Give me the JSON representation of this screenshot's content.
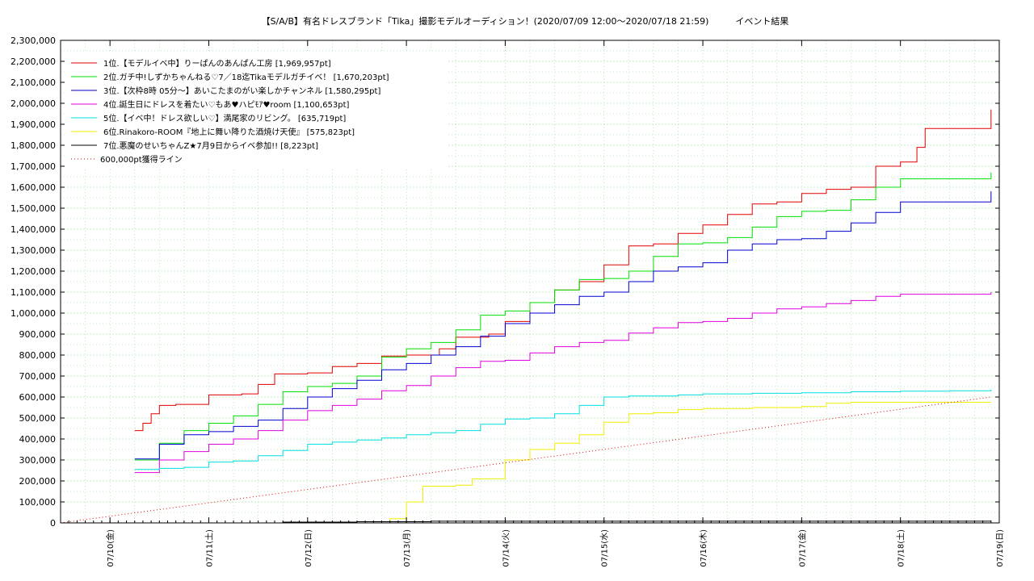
{
  "chart_data": {
    "type": "line",
    "title": "【S/A/B】有名ドレスブランド「Tika」撮影モデルオーディション！(2020/07/09 12:00〜2020/07/18 21:59)　　　イベント結果",
    "xlabel": "",
    "ylabel": "",
    "ylim": [
      0,
      2300000
    ],
    "xlim": [
      "2020-07-09 12:00",
      "2020-07-19 00:00"
    ],
    "grid": true,
    "legend_position": "top-left",
    "y_ticks": [
      "0",
      "100,000",
      "200,000",
      "300,000",
      "400,000",
      "500,000",
      "600,000",
      "700,000",
      "800,000",
      "900,000",
      "1,000,000",
      "1,100,000",
      "1,200,000",
      "1,300,000",
      "1,400,000",
      "1,500,000",
      "1,600,000",
      "1,700,000",
      "1,800,000",
      "1,900,000",
      "2,000,000",
      "2,100,000",
      "2,200,000",
      "2,300,000"
    ],
    "x_ticks": [
      "07/10(金)",
      "07/11(土)",
      "07/12(日)",
      "07/13(月)",
      "07/14(火)",
      "07/15(水)",
      "07/16(木)",
      "07/17(金)",
      "07/18(土)",
      "07/19(日)"
    ],
    "x_tick_dates": [
      "2020-07-10",
      "2020-07-11",
      "2020-07-12",
      "2020-07-13",
      "2020-07-14",
      "2020-07-15",
      "2020-07-16",
      "2020-07-17",
      "2020-07-18",
      "2020-07-19"
    ],
    "series": [
      {
        "name": "1位.【モデルイベ中】りーぱんのあんぱん工房 [1,969,957pt]",
        "color": "#e00000",
        "style": "solid",
        "points": [
          [
            "2020-07-10 06:00",
            440000
          ],
          [
            "2020-07-10 08:00",
            475000
          ],
          [
            "2020-07-10 10:00",
            520000
          ],
          [
            "2020-07-10 12:00",
            560000
          ],
          [
            "2020-07-10 16:00",
            565000
          ],
          [
            "2020-07-11 00:00",
            610000
          ],
          [
            "2020-07-11 08:00",
            615000
          ],
          [
            "2020-07-11 12:00",
            660000
          ],
          [
            "2020-07-11 16:00",
            710000
          ],
          [
            "2020-07-12 00:00",
            715000
          ],
          [
            "2020-07-12 06:00",
            745000
          ],
          [
            "2020-07-12 12:00",
            760000
          ],
          [
            "2020-07-12 18:00",
            795000
          ],
          [
            "2020-07-13 00:00",
            800000
          ],
          [
            "2020-07-13 08:00",
            830000
          ],
          [
            "2020-07-13 12:00",
            885000
          ],
          [
            "2020-07-13 20:00",
            900000
          ],
          [
            "2020-07-14 00:00",
            960000
          ],
          [
            "2020-07-14 06:00",
            1050000
          ],
          [
            "2020-07-14 12:00",
            1110000
          ],
          [
            "2020-07-14 18:00",
            1150000
          ],
          [
            "2020-07-15 00:00",
            1230000
          ],
          [
            "2020-07-15 06:00",
            1320000
          ],
          [
            "2020-07-15 12:00",
            1330000
          ],
          [
            "2020-07-15 18:00",
            1380000
          ],
          [
            "2020-07-16 00:00",
            1420000
          ],
          [
            "2020-07-16 06:00",
            1470000
          ],
          [
            "2020-07-16 12:00",
            1520000
          ],
          [
            "2020-07-16 18:00",
            1530000
          ],
          [
            "2020-07-17 00:00",
            1570000
          ],
          [
            "2020-07-17 06:00",
            1590000
          ],
          [
            "2020-07-17 12:00",
            1600000
          ],
          [
            "2020-07-17 18:00",
            1700000
          ],
          [
            "2020-07-18 00:00",
            1720000
          ],
          [
            "2020-07-18 04:00",
            1790000
          ],
          [
            "2020-07-18 06:00",
            1880000
          ],
          [
            "2020-07-18 12:00",
            1880000
          ],
          [
            "2020-07-18 22:00",
            1969957
          ]
        ]
      },
      {
        "name": "2位.ガチ中!しずかちゃんねる♡7／18迄Tikaモデルガチイベ！ [1,670,203pt]",
        "color": "#00e000",
        "style": "solid",
        "points": [
          [
            "2020-07-10 06:00",
            300000
          ],
          [
            "2020-07-10 12:00",
            380000
          ],
          [
            "2020-07-10 18:00",
            440000
          ],
          [
            "2020-07-11 00:00",
            475000
          ],
          [
            "2020-07-11 06:00",
            510000
          ],
          [
            "2020-07-11 12:00",
            565000
          ],
          [
            "2020-07-11 18:00",
            625000
          ],
          [
            "2020-07-12 00:00",
            650000
          ],
          [
            "2020-07-12 06:00",
            665000
          ],
          [
            "2020-07-12 12:00",
            700000
          ],
          [
            "2020-07-12 18:00",
            790000
          ],
          [
            "2020-07-13 00:00",
            830000
          ],
          [
            "2020-07-13 06:00",
            860000
          ],
          [
            "2020-07-13 12:00",
            920000
          ],
          [
            "2020-07-13 18:00",
            990000
          ],
          [
            "2020-07-14 00:00",
            1010000
          ],
          [
            "2020-07-14 06:00",
            1050000
          ],
          [
            "2020-07-14 12:00",
            1110000
          ],
          [
            "2020-07-14 18:00",
            1160000
          ],
          [
            "2020-07-15 00:00",
            1165000
          ],
          [
            "2020-07-15 06:00",
            1200000
          ],
          [
            "2020-07-15 12:00",
            1270000
          ],
          [
            "2020-07-15 18:00",
            1330000
          ],
          [
            "2020-07-16 00:00",
            1335000
          ],
          [
            "2020-07-16 06:00",
            1360000
          ],
          [
            "2020-07-16 12:00",
            1410000
          ],
          [
            "2020-07-16 18:00",
            1460000
          ],
          [
            "2020-07-17 00:00",
            1485000
          ],
          [
            "2020-07-17 06:00",
            1490000
          ],
          [
            "2020-07-17 12:00",
            1540000
          ],
          [
            "2020-07-17 18:00",
            1600000
          ],
          [
            "2020-07-18 00:00",
            1640000
          ],
          [
            "2020-07-18 22:00",
            1670203
          ]
        ]
      },
      {
        "name": "3位.【次枠8時 05分〜】あいこたまのがい楽しかチャンネル [1,580,295pt]",
        "color": "#0000d0",
        "style": "solid",
        "points": [
          [
            "2020-07-10 06:00",
            305000
          ],
          [
            "2020-07-10 12:00",
            375000
          ],
          [
            "2020-07-10 18:00",
            420000
          ],
          [
            "2020-07-11 00:00",
            435000
          ],
          [
            "2020-07-11 06:00",
            460000
          ],
          [
            "2020-07-11 12:00",
            490000
          ],
          [
            "2020-07-11 18:00",
            545000
          ],
          [
            "2020-07-12 00:00",
            600000
          ],
          [
            "2020-07-12 06:00",
            640000
          ],
          [
            "2020-07-12 12:00",
            680000
          ],
          [
            "2020-07-12 18:00",
            730000
          ],
          [
            "2020-07-13 00:00",
            760000
          ],
          [
            "2020-07-13 06:00",
            800000
          ],
          [
            "2020-07-13 12:00",
            840000
          ],
          [
            "2020-07-13 18:00",
            890000
          ],
          [
            "2020-07-14 00:00",
            950000
          ],
          [
            "2020-07-14 06:00",
            1000000
          ],
          [
            "2020-07-14 12:00",
            1040000
          ],
          [
            "2020-07-14 18:00",
            1080000
          ],
          [
            "2020-07-15 00:00",
            1100000
          ],
          [
            "2020-07-15 06:00",
            1150000
          ],
          [
            "2020-07-15 12:00",
            1200000
          ],
          [
            "2020-07-15 18:00",
            1220000
          ],
          [
            "2020-07-16 00:00",
            1240000
          ],
          [
            "2020-07-16 06:00",
            1300000
          ],
          [
            "2020-07-16 12:00",
            1330000
          ],
          [
            "2020-07-16 18:00",
            1350000
          ],
          [
            "2020-07-17 00:00",
            1355000
          ],
          [
            "2020-07-17 06:00",
            1390000
          ],
          [
            "2020-07-17 12:00",
            1430000
          ],
          [
            "2020-07-17 18:00",
            1480000
          ],
          [
            "2020-07-18 00:00",
            1530000
          ],
          [
            "2020-07-18 22:00",
            1580295
          ]
        ]
      },
      {
        "name": "4位.誕生日にドレスを着たい♡もあ♥ハピﾓｱ♥room [1,100,653pt]",
        "color": "#e000e0",
        "style": "solid",
        "points": [
          [
            "2020-07-10 06:00",
            240000
          ],
          [
            "2020-07-10 12:00",
            300000
          ],
          [
            "2020-07-10 18:00",
            340000
          ],
          [
            "2020-07-11 00:00",
            375000
          ],
          [
            "2020-07-11 06:00",
            400000
          ],
          [
            "2020-07-11 12:00",
            440000
          ],
          [
            "2020-07-11 18:00",
            490000
          ],
          [
            "2020-07-12 00:00",
            535000
          ],
          [
            "2020-07-12 06:00",
            560000
          ],
          [
            "2020-07-12 12:00",
            590000
          ],
          [
            "2020-07-12 18:00",
            630000
          ],
          [
            "2020-07-13 00:00",
            655000
          ],
          [
            "2020-07-13 06:00",
            700000
          ],
          [
            "2020-07-13 12:00",
            740000
          ],
          [
            "2020-07-13 18:00",
            770000
          ],
          [
            "2020-07-14 00:00",
            775000
          ],
          [
            "2020-07-14 06:00",
            810000
          ],
          [
            "2020-07-14 12:00",
            840000
          ],
          [
            "2020-07-14 18:00",
            860000
          ],
          [
            "2020-07-15 00:00",
            870000
          ],
          [
            "2020-07-15 06:00",
            905000
          ],
          [
            "2020-07-15 12:00",
            930000
          ],
          [
            "2020-07-15 18:00",
            955000
          ],
          [
            "2020-07-16 00:00",
            960000
          ],
          [
            "2020-07-16 06:00",
            975000
          ],
          [
            "2020-07-16 12:00",
            1000000
          ],
          [
            "2020-07-16 18:00",
            1020000
          ],
          [
            "2020-07-17 00:00",
            1030000
          ],
          [
            "2020-07-17 06:00",
            1045000
          ],
          [
            "2020-07-17 12:00",
            1060000
          ],
          [
            "2020-07-17 18:00",
            1080000
          ],
          [
            "2020-07-18 00:00",
            1090000
          ],
          [
            "2020-07-18 22:00",
            1100653
          ]
        ]
      },
      {
        "name": "5位.【イベ中！ドレス欲しい♡】満尾家のリビング。 [635,719pt]",
        "color": "#00e0e0",
        "style": "solid",
        "points": [
          [
            "2020-07-10 06:00",
            255000
          ],
          [
            "2020-07-10 12:00",
            260000
          ],
          [
            "2020-07-10 18:00",
            265000
          ],
          [
            "2020-07-11 00:00",
            290000
          ],
          [
            "2020-07-11 06:00",
            295000
          ],
          [
            "2020-07-11 12:00",
            320000
          ],
          [
            "2020-07-11 18:00",
            345000
          ],
          [
            "2020-07-12 00:00",
            375000
          ],
          [
            "2020-07-12 06:00",
            385000
          ],
          [
            "2020-07-12 12:00",
            395000
          ],
          [
            "2020-07-12 18:00",
            405000
          ],
          [
            "2020-07-13 00:00",
            420000
          ],
          [
            "2020-07-13 06:00",
            430000
          ],
          [
            "2020-07-13 12:00",
            440000
          ],
          [
            "2020-07-13 18:00",
            470000
          ],
          [
            "2020-07-14 00:00",
            495000
          ],
          [
            "2020-07-14 06:00",
            500000
          ],
          [
            "2020-07-14 12:00",
            520000
          ],
          [
            "2020-07-14 18:00",
            560000
          ],
          [
            "2020-07-15 00:00",
            600000
          ],
          [
            "2020-07-15 06:00",
            605000
          ],
          [
            "2020-07-15 12:00",
            605000
          ],
          [
            "2020-07-15 18:00",
            610000
          ],
          [
            "2020-07-16 00:00",
            615000
          ],
          [
            "2020-07-16 12:00",
            618000
          ],
          [
            "2020-07-17 00:00",
            620000
          ],
          [
            "2020-07-17 12:00",
            625000
          ],
          [
            "2020-07-18 00:00",
            628000
          ],
          [
            "2020-07-18 12:00",
            630000
          ],
          [
            "2020-07-18 22:00",
            635719
          ]
        ]
      },
      {
        "name": "6位.Rinakoro-ROOM『地上に舞い降りた酒焼け天使』 [575,823pt]",
        "color": "#f0f000",
        "style": "solid",
        "points": [
          [
            "2020-07-12 16:00",
            0
          ],
          [
            "2020-07-12 20:00",
            20000
          ],
          [
            "2020-07-13 00:00",
            100000
          ],
          [
            "2020-07-13 04:00",
            175000
          ],
          [
            "2020-07-13 12:00",
            180000
          ],
          [
            "2020-07-13 16:00",
            210000
          ],
          [
            "2020-07-14 00:00",
            300000
          ],
          [
            "2020-07-14 06:00",
            350000
          ],
          [
            "2020-07-14 12:00",
            380000
          ],
          [
            "2020-07-14 18:00",
            420000
          ],
          [
            "2020-07-15 00:00",
            480000
          ],
          [
            "2020-07-15 06:00",
            520000
          ],
          [
            "2020-07-15 12:00",
            525000
          ],
          [
            "2020-07-15 18:00",
            540000
          ],
          [
            "2020-07-16 00:00",
            545000
          ],
          [
            "2020-07-16 12:00",
            550000
          ],
          [
            "2020-07-17 00:00",
            555000
          ],
          [
            "2020-07-17 06:00",
            570000
          ],
          [
            "2020-07-17 12:00",
            575000
          ],
          [
            "2020-07-18 22:00",
            575823
          ]
        ]
      },
      {
        "name": "7位.悪魔のせいちゃんZ★7月9日からイベ参加!! [8,223pt]",
        "color": "#000000",
        "style": "solid",
        "points": [
          [
            "2020-07-11 12:00",
            0
          ],
          [
            "2020-07-11 18:00",
            4000
          ],
          [
            "2020-07-12 12:00",
            6000
          ],
          [
            "2020-07-13 06:00",
            8000
          ],
          [
            "2020-07-18 22:00",
            8223
          ]
        ]
      },
      {
        "name": "600,000pt獲得ライン",
        "color": "#e00000",
        "style": "dotted",
        "points": [
          [
            "2020-07-09 12:00",
            0
          ],
          [
            "2020-07-18 22:00",
            600000
          ]
        ]
      }
    ]
  }
}
